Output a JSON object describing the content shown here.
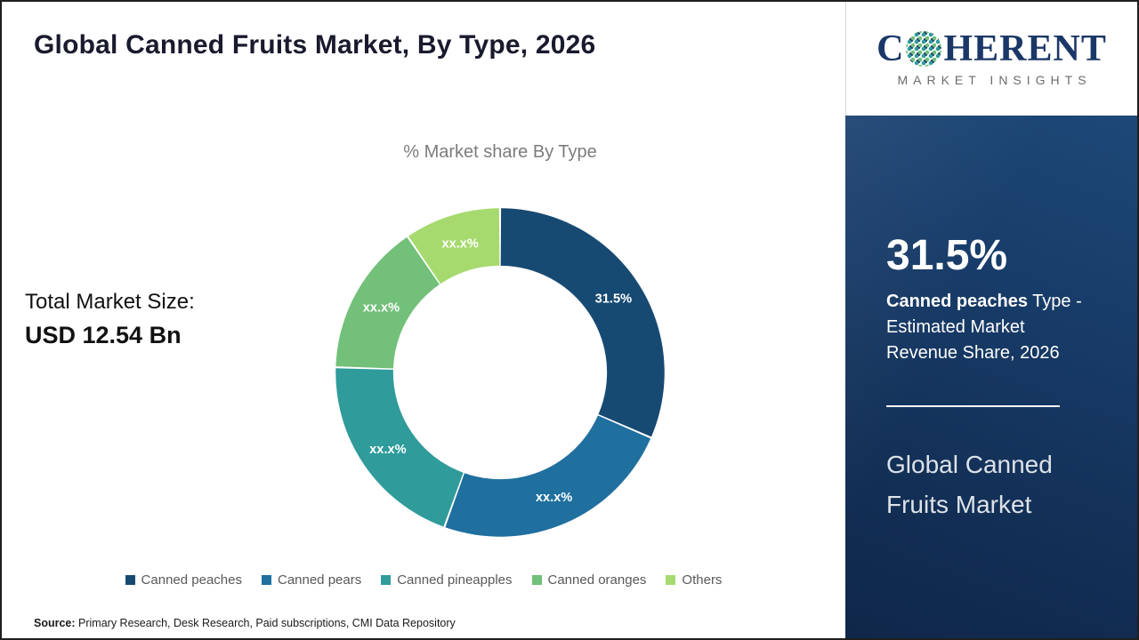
{
  "page": {
    "title": "Global Canned Fruits Market, By Type, 2026",
    "total_market_label": "Total Market Size:",
    "total_market_value": "USD 12.54 Bn",
    "source_label": "Source:",
    "source_text": " Primary Research, Desk Research, Paid subscriptions, CMI Data Repository"
  },
  "logo": {
    "prefix": "C",
    "suffix": "HERENT",
    "subtitle": "MARKET INSIGHTS",
    "brand_navy": "#1b3768"
  },
  "panel": {
    "stat_value": "31.5%",
    "stat_bold": "Canned peaches",
    "stat_rest": " Type - Estimated Market Revenue Share, 2026",
    "market_line1": "Global Canned",
    "market_line2": "Fruits Market",
    "background": "#16365f"
  },
  "chart_data": {
    "type": "pie",
    "subtype": "donut",
    "title": "% Market share By Type",
    "categories": [
      "Canned peaches",
      "Canned pears",
      "Canned pineapples",
      "Canned oranges",
      "Others"
    ],
    "values": [
      31.5,
      24,
      20,
      15,
      9.5
    ],
    "value_labels": [
      "31.5%",
      "xx.x%",
      "xx.x%",
      "xx.x%",
      "xx.x%"
    ],
    "colors": [
      "#174a72",
      "#1f6f9f",
      "#2f9b9b",
      "#72c079",
      "#a6da6e"
    ],
    "start_angle_deg": 0,
    "direction": "clockwise",
    "legend_position": "bottom"
  }
}
